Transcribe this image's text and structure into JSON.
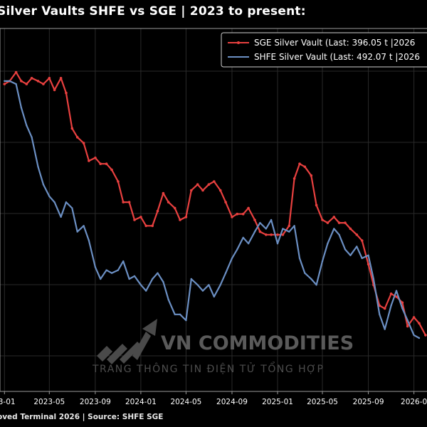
{
  "title": "Silver Vaults SHFE vs SGE | 2023 to present:",
  "footer": "oved Terminal 2026 | Source: SHFE SGE",
  "watermark": {
    "brand": "VN COMMODITIES",
    "tagline": "TRANG THÔNG TIN ĐIỆN TỬ TỔNG HỢP"
  },
  "colors": {
    "sge": "#e8403f",
    "shfe": "#6b8fc3",
    "background": "#000000",
    "grid": "#2a2a2a"
  },
  "chart_data": {
    "type": "line",
    "title": "Silver Vaults SHFE vs SGE | 2023 to present:",
    "xlabel": "",
    "ylabel": "",
    "x_ticks": [
      "2023-01",
      "2023-05",
      "2023-09",
      "2024-01",
      "2024-05",
      "2024-09",
      "2025-01",
      "2025-05",
      "2025-09",
      "2026-01"
    ],
    "x_tick_labels": [
      "23-01",
      "2023-05",
      "2023-09",
      "2024-01",
      "2024-05",
      "2024-09",
      "2025-01",
      "2025-05",
      "2025-09",
      "2026-0"
    ],
    "xlim": [
      "2023-01-01",
      "2026-02-10"
    ],
    "ylim": [
      0,
      100
    ],
    "grid": true,
    "legend_position": "top-right",
    "series": [
      {
        "name": "SGE Silver Vault (Last: 396.05 t |2026",
        "color": "#e8403f",
        "points": [
          [
            "2023-01-01",
            86
          ],
          [
            "2023-01-15",
            87
          ],
          [
            "2023-02-01",
            90
          ],
          [
            "2023-02-15",
            87
          ],
          [
            "2023-03-01",
            86
          ],
          [
            "2023-03-15",
            88
          ],
          [
            "2023-04-01",
            87
          ],
          [
            "2023-04-15",
            86
          ],
          [
            "2023-05-01",
            88
          ],
          [
            "2023-05-15",
            84
          ],
          [
            "2023-06-01",
            88
          ],
          [
            "2023-06-15",
            83
          ],
          [
            "2023-07-01",
            71
          ],
          [
            "2023-07-15",
            68
          ],
          [
            "2023-08-01",
            66
          ],
          [
            "2023-08-15",
            60
          ],
          [
            "2023-09-01",
            61
          ],
          [
            "2023-09-15",
            59
          ],
          [
            "2023-10-01",
            59
          ],
          [
            "2023-10-15",
            57
          ],
          [
            "2023-11-01",
            53
          ],
          [
            "2023-11-15",
            46
          ],
          [
            "2023-12-01",
            46
          ],
          [
            "2023-12-15",
            40
          ],
          [
            "2024-01-01",
            41
          ],
          [
            "2024-01-15",
            38
          ],
          [
            "2024-02-01",
            38
          ],
          [
            "2024-02-15",
            43
          ],
          [
            "2024-03-01",
            49
          ],
          [
            "2024-03-15",
            46
          ],
          [
            "2024-04-01",
            44
          ],
          [
            "2024-04-15",
            40
          ],
          [
            "2024-05-01",
            41
          ],
          [
            "2024-05-15",
            50
          ],
          [
            "2024-06-01",
            52
          ],
          [
            "2024-06-15",
            50
          ],
          [
            "2024-07-01",
            52
          ],
          [
            "2024-07-15",
            53
          ],
          [
            "2024-08-01",
            50
          ],
          [
            "2024-08-15",
            46
          ],
          [
            "2024-09-01",
            41
          ],
          [
            "2024-09-15",
            42
          ],
          [
            "2024-10-01",
            42
          ],
          [
            "2024-10-15",
            44
          ],
          [
            "2024-11-01",
            40
          ],
          [
            "2024-11-15",
            36
          ],
          [
            "2024-12-01",
            35
          ],
          [
            "2024-12-15",
            35
          ],
          [
            "2025-01-01",
            35
          ],
          [
            "2025-01-15",
            35
          ],
          [
            "2025-02-01",
            38
          ],
          [
            "2025-02-15",
            54
          ],
          [
            "2025-03-01",
            59
          ],
          [
            "2025-03-15",
            58
          ],
          [
            "2025-04-01",
            55
          ],
          [
            "2025-04-15",
            45
          ],
          [
            "2025-05-01",
            40
          ],
          [
            "2025-05-15",
            39
          ],
          [
            "2025-06-01",
            41
          ],
          [
            "2025-06-15",
            39
          ],
          [
            "2025-07-01",
            39
          ],
          [
            "2025-07-15",
            37
          ],
          [
            "2025-08-01",
            35
          ],
          [
            "2025-08-15",
            33
          ],
          [
            "2025-09-01",
            25
          ],
          [
            "2025-09-15",
            18
          ],
          [
            "2025-10-01",
            11
          ],
          [
            "2025-10-15",
            10
          ],
          [
            "2025-11-01",
            15
          ],
          [
            "2025-11-15",
            14
          ],
          [
            "2025-12-01",
            12
          ],
          [
            "2025-12-15",
            4
          ],
          [
            "2026-01-01",
            7
          ],
          [
            "2026-01-15",
            5
          ],
          [
            "2026-02-01",
            1
          ]
        ]
      },
      {
        "name": "SHFE Silver Vault (Last: 492.07 t |2026",
        "color": "#6b8fc3",
        "points": [
          [
            "2023-01-01",
            87
          ],
          [
            "2023-01-15",
            87
          ],
          [
            "2023-02-01",
            86
          ],
          [
            "2023-02-15",
            78
          ],
          [
            "2023-03-01",
            72
          ],
          [
            "2023-03-15",
            68
          ],
          [
            "2023-04-01",
            58
          ],
          [
            "2023-04-15",
            52
          ],
          [
            "2023-05-01",
            48
          ],
          [
            "2023-05-15",
            46
          ],
          [
            "2023-06-01",
            41
          ],
          [
            "2023-06-15",
            46
          ],
          [
            "2023-07-01",
            44
          ],
          [
            "2023-07-15",
            36
          ],
          [
            "2023-08-01",
            38
          ],
          [
            "2023-08-15",
            33
          ],
          [
            "2023-09-01",
            24
          ],
          [
            "2023-09-15",
            20
          ],
          [
            "2023-10-01",
            23
          ],
          [
            "2023-10-15",
            22
          ],
          [
            "2023-11-01",
            23
          ],
          [
            "2023-11-15",
            26
          ],
          [
            "2023-12-01",
            20
          ],
          [
            "2023-12-15",
            21
          ],
          [
            "2024-01-01",
            18
          ],
          [
            "2024-01-15",
            16
          ],
          [
            "2024-02-01",
            20
          ],
          [
            "2024-02-15",
            22
          ],
          [
            "2024-03-01",
            19
          ],
          [
            "2024-03-15",
            13
          ],
          [
            "2024-04-01",
            8
          ],
          [
            "2024-04-15",
            8
          ],
          [
            "2024-05-01",
            6
          ],
          [
            "2024-05-15",
            20
          ],
          [
            "2024-06-01",
            18
          ],
          [
            "2024-06-15",
            16
          ],
          [
            "2024-07-01",
            18
          ],
          [
            "2024-07-15",
            14
          ],
          [
            "2024-08-01",
            18
          ],
          [
            "2024-08-15",
            22
          ],
          [
            "2024-09-01",
            27
          ],
          [
            "2024-09-15",
            30
          ],
          [
            "2024-10-01",
            34
          ],
          [
            "2024-10-15",
            32
          ],
          [
            "2024-11-01",
            36
          ],
          [
            "2024-11-15",
            39
          ],
          [
            "2024-12-01",
            37
          ],
          [
            "2024-12-15",
            40
          ],
          [
            "2025-01-01",
            32
          ],
          [
            "2025-01-15",
            37
          ],
          [
            "2025-02-01",
            36
          ],
          [
            "2025-02-15",
            38
          ],
          [
            "2025-03-01",
            27
          ],
          [
            "2025-03-15",
            22
          ],
          [
            "2025-04-01",
            20
          ],
          [
            "2025-04-15",
            18
          ],
          [
            "2025-05-01",
            26
          ],
          [
            "2025-05-15",
            32
          ],
          [
            "2025-06-01",
            37
          ],
          [
            "2025-06-15",
            35
          ],
          [
            "2025-07-01",
            30
          ],
          [
            "2025-07-15",
            28
          ],
          [
            "2025-08-01",
            31
          ],
          [
            "2025-08-15",
            27
          ],
          [
            "2025-09-01",
            28
          ],
          [
            "2025-09-15",
            20
          ],
          [
            "2025-10-01",
            8
          ],
          [
            "2025-10-15",
            3
          ],
          [
            "2025-11-01",
            11
          ],
          [
            "2025-11-15",
            16
          ],
          [
            "2025-12-01",
            10
          ],
          [
            "2025-12-15",
            6
          ],
          [
            "2026-01-01",
            1
          ],
          [
            "2026-01-15",
            0
          ]
        ]
      }
    ]
  }
}
